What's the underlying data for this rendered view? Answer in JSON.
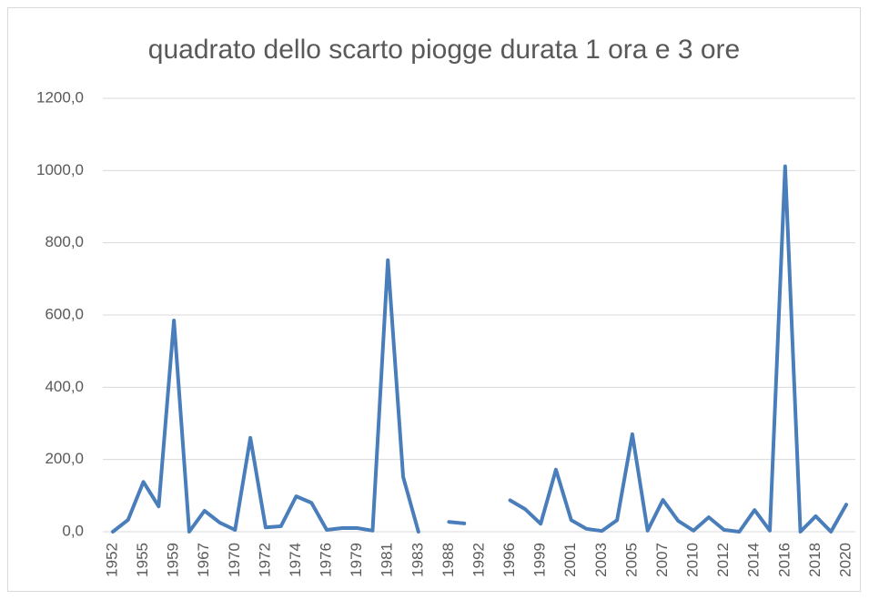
{
  "chart_data": {
    "type": "line",
    "title": "quadrato dello scarto piogge durata 1 ora e 3 ore",
    "categories": [
      "1952",
      null,
      "1955",
      null,
      "1959",
      null,
      "1967",
      null,
      "1970",
      null,
      "1972",
      null,
      "1974",
      null,
      "1976",
      null,
      "1979",
      null,
      "1981",
      null,
      "1983",
      null,
      "1988",
      null,
      "1992",
      null,
      "1996",
      null,
      "1999",
      null,
      "2001",
      null,
      "2003",
      null,
      "2005",
      null,
      "2007",
      null,
      "2010",
      null,
      "2012",
      null,
      "2014",
      null,
      "2016",
      null,
      "2018",
      null,
      "2020"
    ],
    "series": [
      {
        "name": "quadrato dello scarto",
        "color": "#4a7ebb",
        "values": [
          0,
          33,
          138,
          70,
          585,
          0,
          58,
          25,
          5,
          260,
          12,
          15,
          98,
          80,
          5,
          10,
          10,
          3,
          752,
          152,
          0,
          null,
          27,
          23,
          null,
          null,
          87,
          62,
          22,
          172,
          32,
          8,
          2,
          32,
          270,
          3,
          88,
          30,
          3,
          40,
          5,
          0,
          60,
          3,
          1012,
          0,
          43,
          0,
          75
        ]
      }
    ],
    "ylim": [
      0,
      1200
    ],
    "yticks": [
      {
        "value": 0,
        "label": "0,0"
      },
      {
        "value": 200,
        "label": "200,0"
      },
      {
        "value": 400,
        "label": "400,0"
      },
      {
        "value": 600,
        "label": "600,0"
      },
      {
        "value": 800,
        "label": "800,0"
      },
      {
        "value": 1000,
        "label": "1000,0"
      },
      {
        "value": 1200,
        "label": "1200,0"
      }
    ],
    "grid": true
  }
}
